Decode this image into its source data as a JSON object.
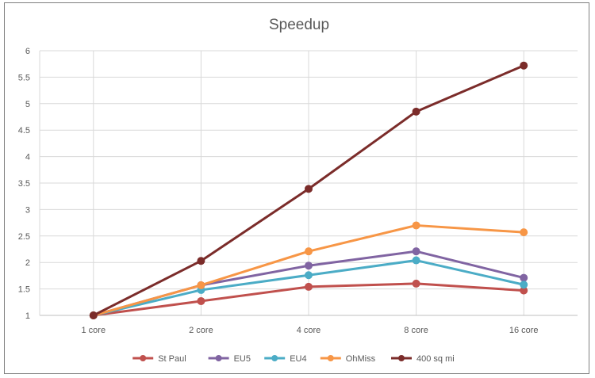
{
  "chart_data": {
    "type": "line",
    "title": "Speedup",
    "xlabel": "",
    "ylabel": "",
    "categories": [
      "1 core",
      "2 core",
      "4 core",
      "8 core",
      "16 core"
    ],
    "ylim": [
      1,
      6
    ],
    "yticks": [
      "1",
      "1.5",
      "2",
      "2.5",
      "3",
      "3.5",
      "4",
      "4.5",
      "5",
      "5.5",
      "6"
    ],
    "grid": true,
    "legend": "bottom",
    "series": [
      {
        "name": "St Paul",
        "color": "#c0504d",
        "values": [
          1,
          1.27,
          1.54,
          1.6,
          1.47
        ]
      },
      {
        "name": "EU5",
        "color": "#8064a2",
        "values": [
          1,
          1.57,
          1.94,
          2.21,
          1.71
        ]
      },
      {
        "name": "EU4",
        "color": "#4bacc6",
        "values": [
          1,
          1.48,
          1.76,
          2.04,
          1.58
        ]
      },
      {
        "name": "OhMiss",
        "color": "#f79646",
        "values": [
          1,
          1.57,
          2.21,
          2.7,
          2.57
        ]
      },
      {
        "name": "400 sq mi",
        "color": "#7b2c2a",
        "values": [
          1,
          2.03,
          3.39,
          4.85,
          5.72
        ]
      }
    ]
  }
}
